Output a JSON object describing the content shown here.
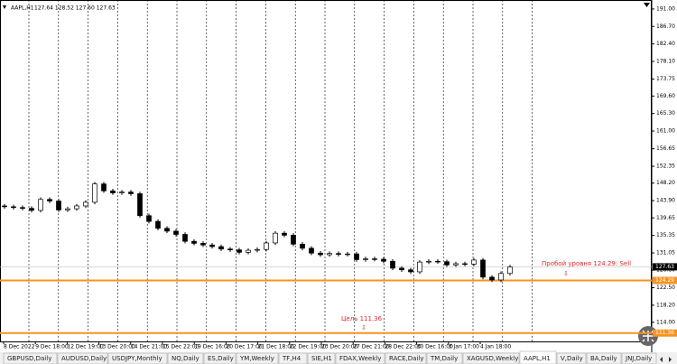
{
  "chart_data": {
    "type": "candlestick",
    "title": "AAPL,H1",
    "subtitle": "127.64 128.52 127.60 127.63",
    "ylim": [
      109.3,
      193.2
    ],
    "yticks": [
      {
        "value": 191,
        "label": "191.00"
      },
      {
        "value": 186.7,
        "label": "186.70"
      },
      {
        "value": 182.4,
        "label": "182.40"
      },
      {
        "value": 178.1,
        "label": "178.10"
      },
      173.75,
      {
        "value": 169.6,
        "label": "169.60"
      },
      {
        "value": 165.3,
        "label": "165.30"
      },
      {
        "value": 161,
        "label": "161.00"
      },
      156.65,
      152.35,
      {
        "value": 148.2,
        "label": "148.20"
      },
      {
        "value": 143.9,
        "label": "143.90"
      },
      139.65,
      135.35,
      131.05,
      {
        "value": 126.8,
        "label": "126.80"
      },
      {
        "value": 122.5,
        "label": "122.50"
      },
      {
        "value": 118.2,
        "label": "118.20"
      },
      {
        "value": 114,
        "label": "114.00"
      }
    ],
    "x_labels": [
      "8 Dec 2022",
      "9 Dec 18:00",
      "12 Dec 19:00",
      "13 Dec 20:00",
      "14 Dec 21:00",
      "15 Dec 22:00",
      "19 Dec 16:00",
      "20 Dec 17:00",
      "21 Dec 18:00",
      "22 Dec 19:00",
      "23 Dec 20:00",
      "27 Dec 21:00",
      "28 Dec 22:00",
      "30 Dec 16:00",
      "3 Jan 17:00",
      "4 Jan 18:00"
    ],
    "up_color": "#ffffff",
    "down_color": "#000000",
    "open": [
      142.6,
      142.4,
      142.2,
      142.0,
      141.5,
      144.2,
      143.8,
      141.6,
      141.9,
      142.6,
      143.5,
      148.0,
      146.3,
      145.8,
      146.0,
      145.6,
      140.2,
      138.8,
      137.1,
      136.4,
      135.6,
      133.9,
      133.4,
      133.0,
      132.6,
      132.0,
      131.8,
      131.2,
      131.7,
      131.9,
      133.5,
      135.9,
      135.4,
      133.2,
      132.2,
      131.0,
      130.6,
      130.9,
      130.7,
      130.8,
      129.4,
      129.6,
      129.5,
      129.0,
      127.3,
      126.9,
      126.4,
      128.8,
      129.0,
      128.9,
      128.1,
      128.4,
      128.3,
      129.3,
      125.1,
      124.4,
      126.0
    ],
    "high": [
      143.1,
      142.9,
      142.7,
      142.5,
      144.7,
      144.7,
      144.3,
      142.4,
      143.1,
      144.0,
      148.5,
      148.5,
      146.8,
      146.5,
      146.5,
      146.1,
      140.7,
      139.3,
      137.6,
      136.9,
      136.1,
      134.4,
      133.9,
      133.5,
      133.1,
      132.5,
      132.3,
      132.2,
      132.4,
      134.0,
      136.4,
      136.4,
      135.9,
      133.7,
      132.7,
      131.5,
      131.4,
      131.4,
      131.3,
      131.3,
      130.1,
      130.1,
      130.0,
      129.5,
      127.8,
      127.4,
      129.3,
      129.5,
      129.5,
      129.4,
      128.9,
      128.9,
      129.8,
      129.8,
      125.6,
      126.5,
      128.1
    ],
    "low": [
      141.9,
      141.7,
      141.5,
      141.0,
      141.0,
      143.3,
      141.1,
      141.1,
      141.4,
      142.1,
      143.0,
      145.8,
      145.3,
      145.3,
      145.1,
      139.7,
      138.3,
      136.6,
      135.9,
      135.1,
      133.4,
      132.9,
      132.5,
      132.1,
      131.5,
      131.3,
      130.7,
      130.7,
      131.2,
      131.4,
      133.0,
      134.9,
      132.7,
      131.7,
      130.5,
      130.1,
      130.1,
      130.2,
      130.2,
      128.9,
      128.9,
      129.0,
      128.5,
      126.8,
      126.4,
      125.9,
      125.9,
      128.3,
      128.4,
      127.6,
      127.6,
      127.8,
      127.8,
      124.6,
      123.9,
      123.9,
      125.5
    ],
    "close": [
      142.4,
      142.2,
      142.0,
      141.5,
      144.2,
      143.8,
      141.6,
      141.9,
      142.6,
      143.5,
      148.0,
      146.3,
      145.8,
      146.0,
      145.6,
      140.2,
      138.8,
      137.1,
      136.4,
      135.6,
      133.9,
      133.4,
      133.0,
      132.6,
      132.0,
      131.8,
      131.2,
      131.7,
      131.9,
      133.5,
      135.9,
      135.4,
      133.2,
      132.2,
      131.0,
      130.6,
      130.9,
      130.7,
      130.8,
      129.4,
      129.6,
      129.5,
      129.0,
      127.3,
      126.9,
      126.4,
      128.8,
      129.0,
      128.9,
      128.1,
      128.4,
      128.3,
      129.3,
      125.1,
      124.4,
      126.0,
      127.6
    ],
    "current_price": {
      "value": 127.63,
      "color": "#000000"
    },
    "levels": [
      {
        "value": 124.29,
        "color": "#f7931e"
      },
      {
        "value": 111.36,
        "color": "#f7931e"
      }
    ],
    "annotations": [
      {
        "text": "Пробой уровня 124.29: Sell",
        "arrow": "⇩"
      },
      {
        "text": "Цель 111.36",
        "arrow": "⇩"
      }
    ]
  },
  "tabs": [
    "GBPUSD,Daily",
    "AUDUSD,Daily",
    "USDJPY,Monthly",
    "NQ,Daily",
    "ES,Daily",
    "YM,Weekly",
    "TF,H4",
    "SIE,H1",
    "FDAX,Weekly",
    "RACE,Daily",
    "TM,Daily",
    "XAGUSD,Weekly",
    "AAPL,H1",
    "V,Daily",
    "BA,Daily",
    "JNJ,Daily"
  ],
  "active_tab": 12
}
